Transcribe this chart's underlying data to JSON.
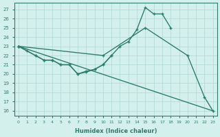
{
  "line1_x": [
    0,
    1,
    2,
    3,
    4,
    5,
    6,
    7,
    8,
    9,
    10,
    11,
    12,
    13,
    14,
    15,
    16,
    17,
    18
  ],
  "line1_y": [
    23,
    22.5,
    22,
    21.5,
    21.5,
    21,
    21,
    20.0,
    20.2,
    20.5,
    21,
    22.0,
    23.0,
    23.5,
    24.8,
    27.2,
    26.5,
    26.5,
    25.0
  ],
  "line2_x": [
    0,
    10,
    15,
    20,
    22,
    23
  ],
  "line2_y": [
    23,
    22,
    25.0,
    22,
    17.5,
    16
  ],
  "line3_x": [
    0,
    2,
    3,
    4,
    5,
    6,
    7,
    8,
    9,
    10,
    11
  ],
  "line3_y": [
    23,
    22,
    21.5,
    21.5,
    21,
    21,
    20.0,
    20.3,
    20.5,
    21,
    22
  ],
  "line4_x": [
    0,
    23
  ],
  "line4_y": [
    23,
    16
  ],
  "color": "#2E7D6B",
  "bg_color": "#D4F0ED",
  "grid_color": "#B0D8D4",
  "xlabel": "Humidex (Indice chaleur)",
  "ylim": [
    15.5,
    27.7
  ],
  "xlim": [
    -0.5,
    23.5
  ],
  "yticks": [
    16,
    17,
    18,
    19,
    20,
    21,
    22,
    23,
    24,
    25,
    26,
    27
  ],
  "xticks": [
    0,
    1,
    2,
    3,
    4,
    5,
    6,
    7,
    8,
    9,
    10,
    11,
    12,
    13,
    14,
    15,
    16,
    17,
    18,
    19,
    20,
    21,
    22,
    23
  ]
}
